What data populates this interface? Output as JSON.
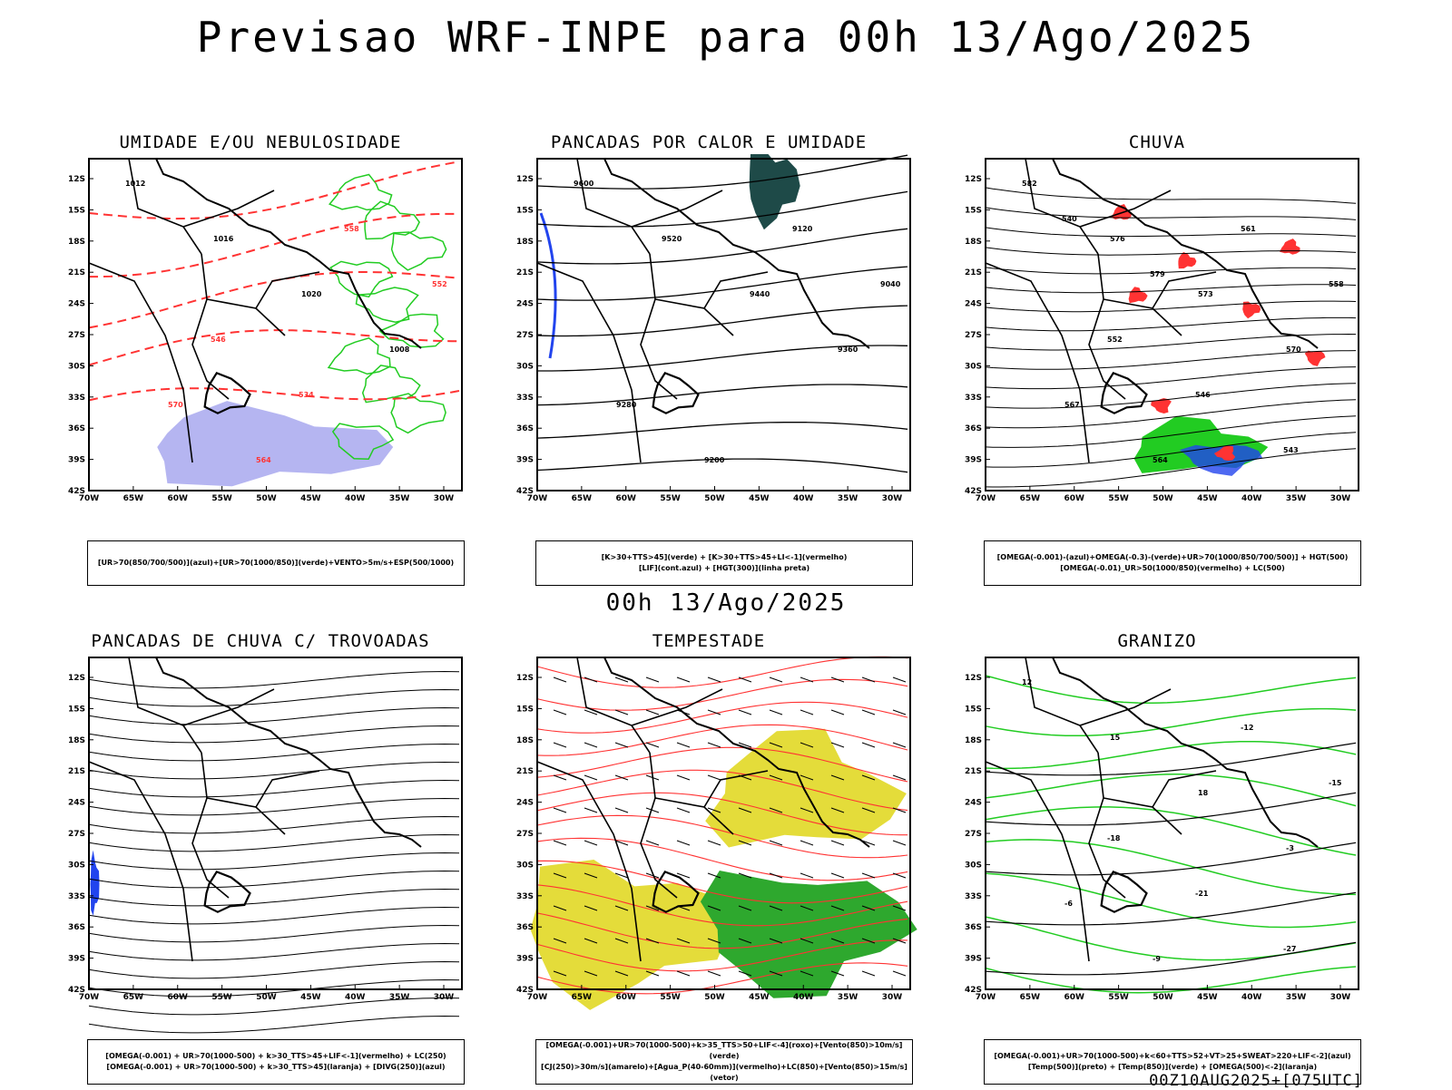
{
  "header": {
    "title": "Previsao WRF-INPE  para 00h 13/Ago/2025",
    "subtitle": "00h 13/Ago/2025",
    "footer": "00Z10AUG2025+[075UTC]"
  },
  "axes": {
    "lat_ticks": [
      "12S",
      "15S",
      "18S",
      "21S",
      "24S",
      "27S",
      "30S",
      "33S",
      "36S",
      "39S",
      "42S"
    ],
    "lon_ticks": [
      "70W",
      "65W",
      "60W",
      "55W",
      "50W",
      "45W",
      "40W",
      "35W",
      "30W"
    ]
  },
  "colors": {
    "green": "#22cc22",
    "red": "#ff3333",
    "blue": "#2244ee",
    "lavender": "#a8a8ee",
    "teal": "#1e4a48",
    "yellow": "#e4dc3a",
    "orange": "#f08a24"
  },
  "panels": [
    {
      "title": "UMIDADE E/OU NEBULOSIDADE",
      "legend": [
        "[UR>70(850/700/500)](azul)+[UR>70(1000/850)](verde)+VENTO>5m/s+ESP(500/1000)"
      ],
      "labels": [
        "1012",
        "1016",
        "1020",
        "1008",
        "570",
        "564",
        "558",
        "552",
        "546",
        "534"
      ]
    },
    {
      "title": "PANCADAS POR CALOR E UMIDADE",
      "legend": [
        "[K>30+TTS>45](verde) + [K>30+TTS>45+LI<-1](vermelho)",
        "[LIF](cont.azul) + [HGT(300)](linha preta)"
      ],
      "labels": [
        "9600",
        "9520",
        "9440",
        "9360",
        "9280",
        "9200",
        "9120",
        "9040"
      ]
    },
    {
      "title": "CHUVA",
      "legend": [
        "[OMEGA(-0.001)-(azul)+OMEGA(-0.3)-(verde)+UR>70(1000/850/700/500)] + HGT(500)",
        "[OMEGA(-0.01)_UR>50(1000/850)(vermelho) + LC(500)"
      ],
      "labels": [
        "582",
        "576",
        "573",
        "570",
        "567",
        "564",
        "561",
        "558",
        "552",
        "546",
        "543",
        "540",
        "579"
      ]
    },
    {
      "title": "PANCADAS DE CHUVA C/ TROVOADAS",
      "legend": [
        "[OMEGA(-0.001) + UR>70(1000-500) + k>30_TTS>45+LIF<-1](vermelho) + LC(250)",
        "[OMEGA(-0.001) + UR>70(1000-500) + k>30_TTS>45](laranja) + [DIVG(250)](azul)"
      ],
      "labels": []
    },
    {
      "title": "TEMPESTADE",
      "legend": [
        "[OMEGA(-0.001)+UR>70(1000-500)+k>35_TTS>50+LIF<-4](roxo)+[Vento(850)>10m/s](verde)",
        "[CJ(250)>30m/s](amarelo)+[Agua_P(40-60mm)](vermelho)+LC(850)+[Vento(850)>15m/s](vetor)"
      ],
      "labels": []
    },
    {
      "title": "GRANIZO",
      "legend": [
        "[OMEGA(-0.001)+UR>70(1000-500)+k<60+TTS>52+VT>25+SWEAT>220+LIF<-2](azul)",
        "[Temp(500)](preto) + [Temp(850)](verde) + [OMEGA(500)<-2](laranja)"
      ],
      "labels": [
        "12",
        "15",
        "18",
        "-3",
        "-6",
        "-9",
        "-12",
        "-15",
        "-18",
        "-21",
        "-27"
      ]
    }
  ]
}
